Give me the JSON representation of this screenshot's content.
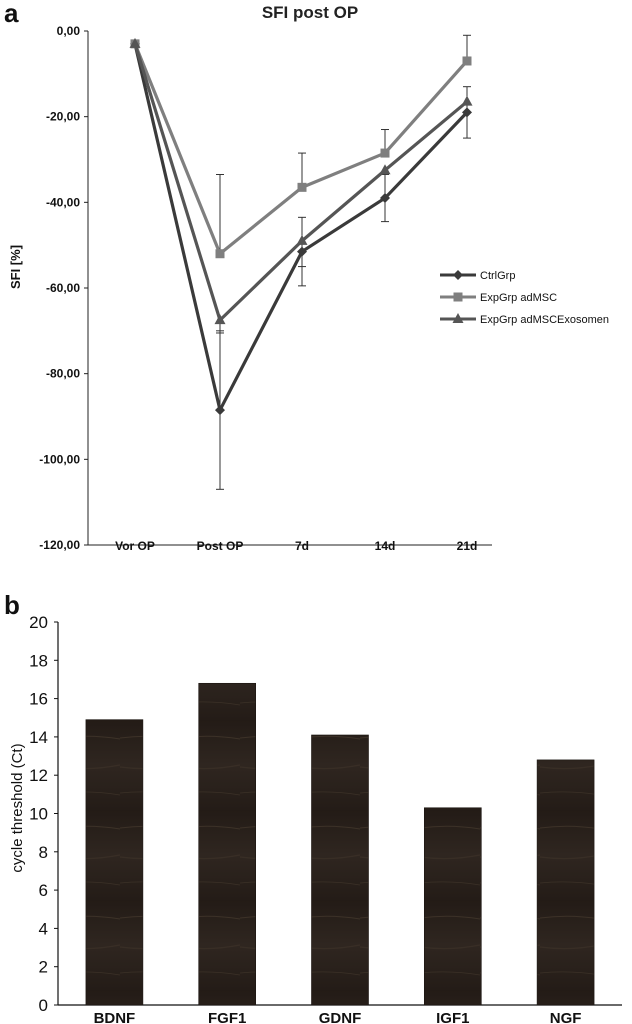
{
  "chart_data": [
    {
      "type": "line",
      "panel": "a",
      "title": "SFI post OP",
      "ylabel": "SFI [%]",
      "xlabel": "",
      "categories": [
        "Vor OP",
        "Post OP",
        "7d",
        "14d",
        "21d"
      ],
      "ylim": [
        -120,
        0
      ],
      "yticks": [
        "0,00",
        "-20,00",
        "-40,00",
        "-60,00",
        "-80,00",
        "-100,00",
        "-120,00"
      ],
      "ytick_values": [
        0,
        -20,
        -40,
        -60,
        -80,
        -100,
        -120
      ],
      "legend_position": "right",
      "series": [
        {
          "name": "CtrlGrp",
          "marker": "diamond",
          "color": "#3a3a3a",
          "values": [
            -3,
            -88.5,
            -51.5,
            -39,
            -19
          ],
          "err_low": [
            0,
            18.5,
            8,
            5.5,
            6
          ],
          "err_high": [
            0,
            18.5,
            8,
            5.5,
            6
          ]
        },
        {
          "name": "ExpGrp adMSC",
          "marker": "square",
          "color": "#7f7f7f",
          "values": [
            -3,
            -52,
            -36.5,
            -28.5,
            -7
          ],
          "err_low": [
            0,
            0,
            0,
            0,
            0
          ],
          "err_high": [
            0,
            18.5,
            8,
            5.5,
            6
          ]
        },
        {
          "name": "ExpGrp adMSCExosomen",
          "marker": "triangle",
          "color": "#555555",
          "values": [
            -3,
            -67.5,
            -49,
            -32.5,
            -16.5
          ],
          "err_low": [
            0,
            3,
            6,
            0,
            0
          ],
          "err_high": [
            0,
            0,
            0,
            0,
            0
          ]
        }
      ]
    },
    {
      "type": "bar",
      "panel": "b",
      "title": "",
      "xlabel": "",
      "ylabel": "cycle threshold (Ct)",
      "categories": [
        "BDNF",
        "FGF1",
        "GDNF",
        "IGF1",
        "NGF"
      ],
      "values": [
        14.9,
        16.8,
        14.1,
        10.3,
        12.8
      ],
      "ylim": [
        0,
        20
      ],
      "yticks": [
        "0",
        "2",
        "4",
        "6",
        "8",
        "10",
        "12",
        "14",
        "16",
        "18",
        "20"
      ],
      "ytick_values": [
        0,
        2,
        4,
        6,
        8,
        10,
        12,
        14,
        16,
        18,
        20
      ],
      "bar_color": "#2b231e"
    }
  ]
}
